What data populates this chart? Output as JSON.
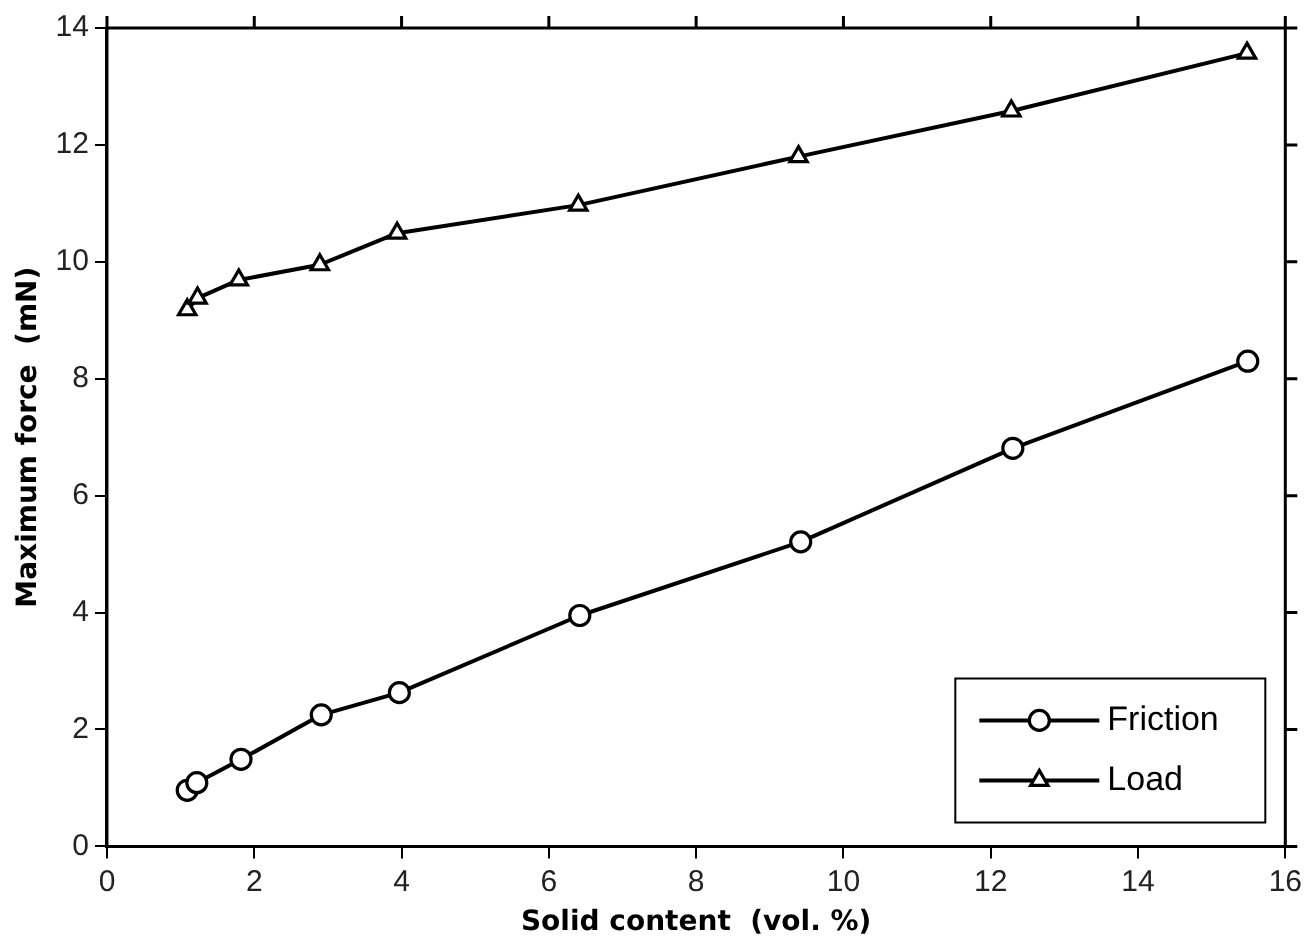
{
  "chart_data": {
    "type": "line",
    "xlabel": "Solid content  (vol. %)",
    "ylabel": "Maximum force  (mN)",
    "xlim": [
      0,
      16
    ],
    "xticks": [
      0,
      2,
      4,
      6,
      8,
      10,
      12,
      14,
      16
    ],
    "ylim": [
      0,
      14
    ],
    "yticks": [
      0,
      2,
      4,
      6,
      8,
      10,
      12,
      14
    ],
    "grid": false,
    "legend": "bottom right",
    "series": [
      {
        "name": "Friction",
        "color": "#000000",
        "marker": "circle",
        "x": [
          1.09,
          1.22,
          1.82,
          2.91,
          3.97,
          6.42,
          9.42,
          12.3,
          15.49
        ],
        "values": [
          0.96,
          1.09,
          1.49,
          2.25,
          2.63,
          3.95,
          5.21,
          6.81,
          8.3
        ]
      },
      {
        "name": "Load",
        "color": "#000000",
        "marker": "triangle",
        "x": [
          1.09,
          1.23,
          1.79,
          2.89,
          3.94,
          6.4,
          9.39,
          12.28,
          15.48
        ],
        "values": [
          9.18,
          9.38,
          9.69,
          9.95,
          10.49,
          10.97,
          11.8,
          12.58,
          13.57
        ]
      }
    ]
  }
}
